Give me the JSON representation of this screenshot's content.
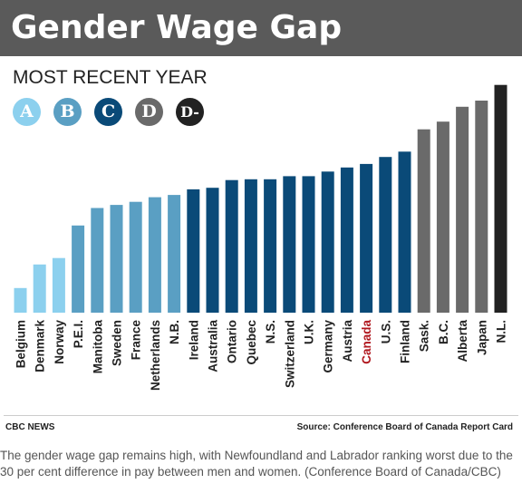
{
  "header": {
    "title": "Gender Wage Gap"
  },
  "subtitle": "MOST RECENT YEAR",
  "grades": [
    {
      "label": "A",
      "color": "#8cd0ee"
    },
    {
      "label": "B",
      "color": "#5a9fc3"
    },
    {
      "label": "C",
      "color": "#0a4a78"
    },
    {
      "label": "D",
      "color": "#6a6a6a"
    },
    {
      "label": "D-",
      "color": "#222222"
    }
  ],
  "colors": {
    "A": "#8cd0ee",
    "B": "#5a9fc3",
    "C": "#0a4a78",
    "D": "#6a6a6a",
    "D-": "#222222",
    "highlight_label": "#b0161d"
  },
  "chart_data": {
    "type": "bar",
    "title": "Gender Wage Gap",
    "subtitle": "MOST RECENT YEAR",
    "categories": [
      "Belgium",
      "Denmark",
      "Norway",
      "P.E.I.",
      "Manitoba",
      "Sweden",
      "France",
      "Netherlands",
      "N.B.",
      "Ireland",
      "Australia",
      "Ontario",
      "Quebec",
      "N.S.",
      "Switzerland",
      "U.K.",
      "Germany",
      "Austria",
      "Canada",
      "U.S.",
      "Finland",
      "Sask.",
      "B.C.",
      "Alberta",
      "Japan",
      "N.L."
    ],
    "values": [
      9.6,
      18.8,
      21.3,
      34.0,
      40.8,
      42.0,
      43.2,
      45.0,
      45.9,
      48.1,
      48.7,
      51.7,
      52.0,
      52.0,
      53.2,
      53.2,
      55.0,
      56.6,
      58.0,
      60.7,
      62.8,
      71.5,
      74.5,
      80.3,
      82.7,
      88.8
    ],
    "grades": [
      "A",
      "A",
      "A",
      "B",
      "B",
      "B",
      "B",
      "B",
      "B",
      "C",
      "C",
      "C",
      "C",
      "C",
      "C",
      "C",
      "C",
      "C",
      "C",
      "C",
      "C",
      "D",
      "D",
      "D",
      "D",
      "D-"
    ],
    "highlight": "Canada",
    "ylim": [
      0,
      100
    ],
    "grid": false,
    "legend": "top-left"
  },
  "footer": {
    "credit": "CBC NEWS",
    "source": "Source: Conference Board of Canada Report Card"
  },
  "caption": "The gender wage gap remains high, with Newfoundland and Labrador ranking worst due to the 30 per cent difference in pay between men and women. (Conference Board of Canada/CBC)"
}
